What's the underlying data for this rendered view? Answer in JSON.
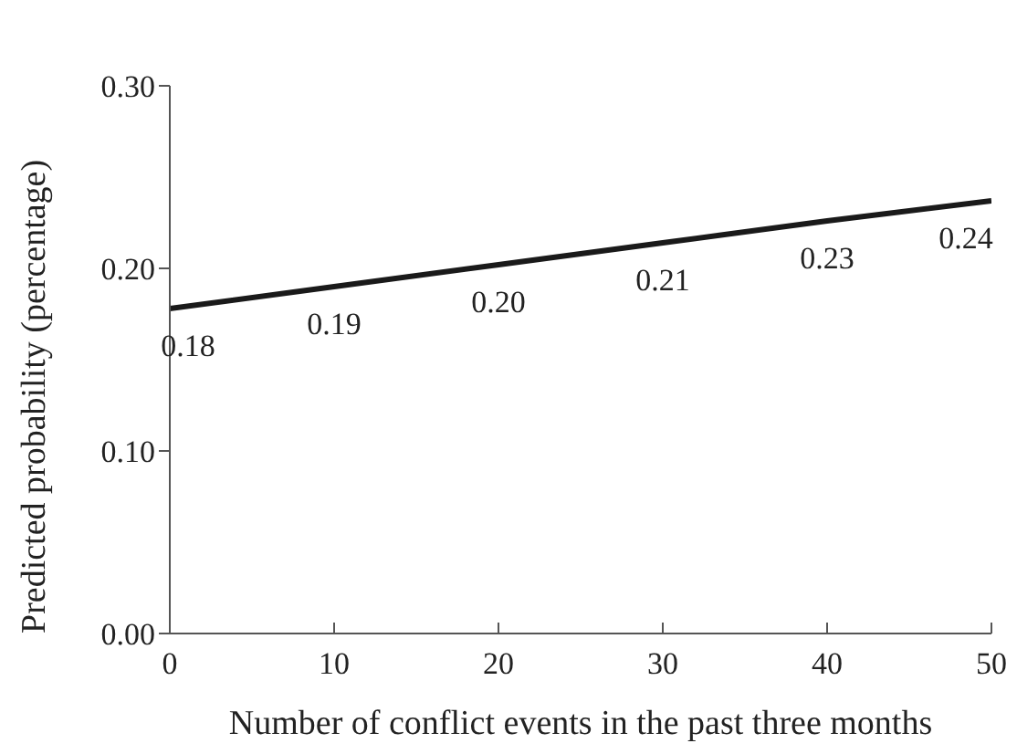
{
  "chart_data": {
    "type": "line",
    "xlabel": "Number of conflict events in the past three months",
    "ylabel": "Predicted probability (percentage)",
    "x": [
      0,
      10,
      20,
      30,
      40,
      50
    ],
    "series": [
      {
        "color": "#1a1a1a",
        "values": [
          0.178,
          0.19,
          0.202,
          0.214,
          0.226,
          0.237
        ],
        "value_labels": [
          "0.18",
          "0.19",
          "0.20",
          "0.21",
          "0.23",
          "0.24"
        ]
      }
    ],
    "xlim": [
      0,
      50
    ],
    "xticks": [
      0,
      10,
      20,
      30,
      40,
      50
    ],
    "ylim": [
      0,
      0.3
    ],
    "yticks": [
      {
        "value": 0,
        "label": "0.00"
      },
      {
        "value": 0.1,
        "label": "0.10"
      },
      {
        "value": 0.2,
        "label": "0.20"
      },
      {
        "value": 0.3,
        "label": "0.30"
      }
    ],
    "grid": false,
    "legend": false,
    "marker": "none",
    "line_style": "solid"
  }
}
